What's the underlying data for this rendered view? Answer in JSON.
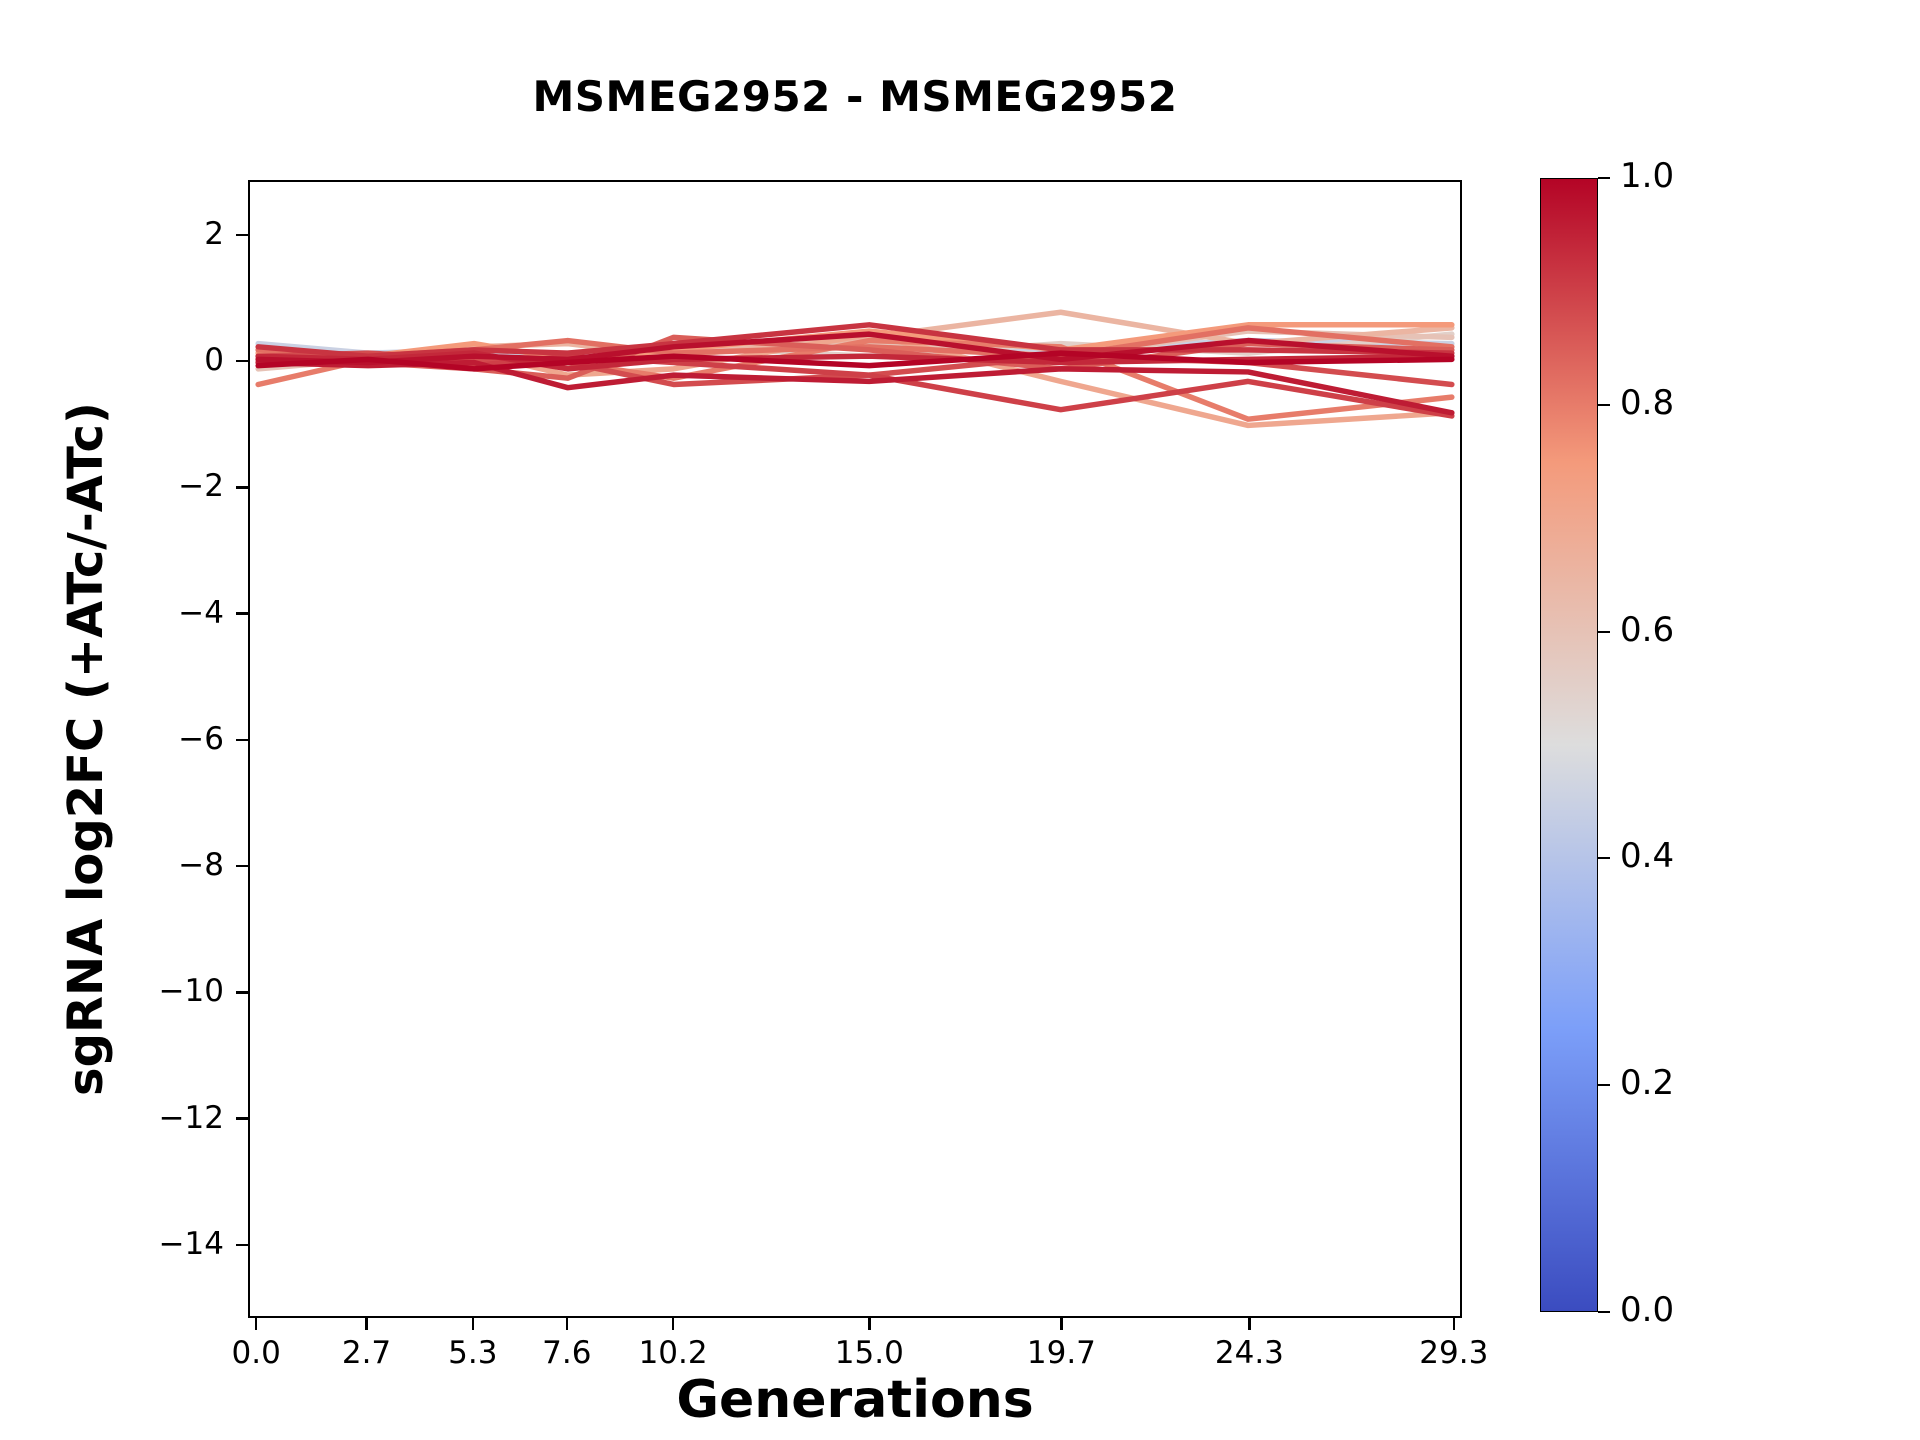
{
  "chart_data": {
    "type": "line",
    "title": "MSMEG2952 - MSMEG2952",
    "xlabel": "Generations",
    "ylabel": "sgRNA log2FC (+ATc/-ATc)",
    "x": [
      0.0,
      2.7,
      5.3,
      7.6,
      10.2,
      15.0,
      19.7,
      24.3,
      29.3
    ],
    "xlim": [
      -0.2,
      29.5
    ],
    "ylim": [
      -15.16,
      2.87
    ],
    "grid": false,
    "legend": "none",
    "xtick_values": [
      0.0,
      2.7,
      5.3,
      7.6,
      10.2,
      15.0,
      19.7,
      24.3,
      29.3
    ],
    "xtick_labels": [
      "0.0",
      "2.7",
      "5.3",
      "7.6",
      "10.2",
      "15.0",
      "19.7",
      "24.3",
      "29.3"
    ],
    "ytick_values": [
      2,
      0,
      -2,
      -4,
      -6,
      -8,
      -10,
      -12,
      -14
    ],
    "ytick_labels": [
      "2",
      "0",
      "−2",
      "−4",
      "−6",
      "−8",
      "−10",
      "−12",
      "−14"
    ],
    "colorbar": {
      "min": 0.0,
      "max": 1.0,
      "tick_values": [
        1.0,
        0.8,
        0.6,
        0.4,
        0.2,
        0.0
      ],
      "tick_labels": [
        "1.0",
        "0.8",
        "0.6",
        "0.4",
        "0.2",
        "0.0"
      ],
      "colormap": "coolwarm",
      "stops": [
        {
          "pos": 0.0,
          "color": "#3b4cc0"
        },
        {
          "pos": 0.25,
          "color": "#7c9ff9"
        },
        {
          "pos": 0.5,
          "color": "#dddddd"
        },
        {
          "pos": 0.75,
          "color": "#f49a7b"
        },
        {
          "pos": 1.0,
          "color": "#b40426"
        }
      ]
    },
    "series": [
      {
        "color_value": 0.45,
        "values": [
          0.3,
          0.15,
          0.2,
          0.1,
          0.3,
          0.25,
          0.2,
          0.35,
          0.3
        ]
      },
      {
        "color_value": 0.55,
        "values": [
          0.05,
          0.1,
          0.0,
          0.15,
          0.25,
          0.1,
          0.3,
          0.15,
          0.45
        ]
      },
      {
        "color_value": 0.6,
        "values": [
          -0.1,
          0.05,
          0.1,
          -0.05,
          0.2,
          0.3,
          0.1,
          0.5,
          0.4
        ]
      },
      {
        "color_value": 0.65,
        "values": [
          0.2,
          0.1,
          0.25,
          0.3,
          0.1,
          0.4,
          0.8,
          0.3,
          0.55
        ]
      },
      {
        "color_value": 0.7,
        "values": [
          0.1,
          0.0,
          0.15,
          -0.2,
          -0.1,
          0.45,
          -0.3,
          -1.0,
          -0.8
        ]
      },
      {
        "color_value": 0.75,
        "values": [
          0.15,
          0.1,
          0.3,
          0.05,
          0.2,
          0.5,
          0.2,
          0.6,
          0.6
        ]
      },
      {
        "color_value": 0.8,
        "values": [
          -0.35,
          0.05,
          0.1,
          0.0,
          -0.25,
          0.35,
          0.25,
          -0.9,
          -0.55
        ]
      },
      {
        "color_value": 0.82,
        "values": [
          0.2,
          0.1,
          0.2,
          0.35,
          0.15,
          0.25,
          0.1,
          0.55,
          0.25
        ]
      },
      {
        "color_value": 0.85,
        "values": [
          0.05,
          0.0,
          -0.1,
          -0.25,
          0.4,
          0.2,
          -0.1,
          0.3,
          0.2
        ]
      },
      {
        "color_value": 0.88,
        "values": [
          0.1,
          0.15,
          0.05,
          0.0,
          -0.35,
          -0.2,
          0.1,
          0.0,
          -0.35
        ]
      },
      {
        "color_value": 0.9,
        "values": [
          0.0,
          0.1,
          -0.05,
          0.1,
          0.0,
          -0.2,
          -0.75,
          -0.3,
          -0.85
        ]
      },
      {
        "color_value": 0.92,
        "values": [
          0.25,
          0.1,
          0.2,
          0.15,
          0.3,
          0.6,
          0.2,
          0.2,
          0.15
        ]
      },
      {
        "color_value": 0.94,
        "values": [
          0.1,
          0.05,
          0.15,
          -0.1,
          0.05,
          0.1,
          0.0,
          0.05,
          0.1
        ]
      },
      {
        "color_value": 0.96,
        "values": [
          0.0,
          -0.05,
          0.0,
          -0.4,
          -0.2,
          -0.3,
          -0.1,
          -0.15,
          -0.8
        ]
      },
      {
        "color_value": 0.98,
        "values": [
          0.05,
          0.0,
          0.1,
          0.05,
          0.25,
          0.45,
          0.05,
          0.35,
          0.1
        ]
      },
      {
        "color_value": 1.0,
        "values": [
          -0.05,
          0.05,
          -0.1,
          0.0,
          0.1,
          -0.05,
          0.15,
          0.0,
          0.05
        ]
      }
    ]
  }
}
